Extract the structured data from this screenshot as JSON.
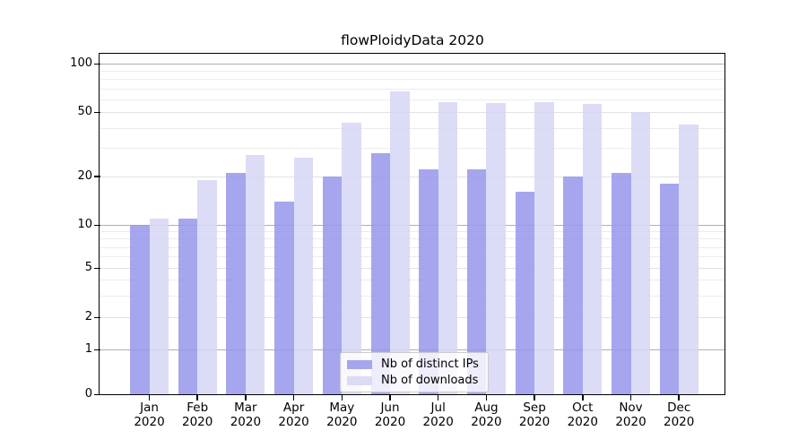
{
  "title": "flowPloidyData 2020",
  "chart_data": {
    "type": "bar",
    "title": "flowPloidyData 2020",
    "categories": [
      "Jan",
      "Feb",
      "Mar",
      "Apr",
      "May",
      "Jun",
      "Jul",
      "Aug",
      "Sep",
      "Oct",
      "Nov",
      "Dec"
    ],
    "category_year": "2020",
    "series": [
      {
        "name": "Nb of distinct IPs",
        "color": "#9696eb",
        "values": [
          10,
          11,
          21,
          14,
          20,
          28,
          22,
          22,
          16,
          20,
          21,
          18
        ]
      },
      {
        "name": "Nb of downloads",
        "color": "#d6d6f5",
        "values": [
          11,
          19,
          27,
          26,
          43,
          67,
          58,
          57,
          58,
          56,
          50,
          42
        ]
      }
    ],
    "xlabel": "",
    "ylabel": "",
    "yscale": "log-like with zero baseline",
    "yticks": [
      0,
      1,
      2,
      5,
      10,
      20,
      50,
      100
    ],
    "minor_yticks": [
      3,
      4,
      6,
      7,
      8,
      9,
      30,
      40,
      60,
      70,
      80,
      90
    ],
    "ylim": [
      0,
      100
    ],
    "grid": true,
    "legend_position": "bottom-center",
    "colors": {
      "major_power_gridline": "#b0b0b0",
      "major_gridline": "#e2e2e2",
      "minor_gridline": "#ececec",
      "axis": "#000000",
      "background": "#ffffff"
    }
  }
}
